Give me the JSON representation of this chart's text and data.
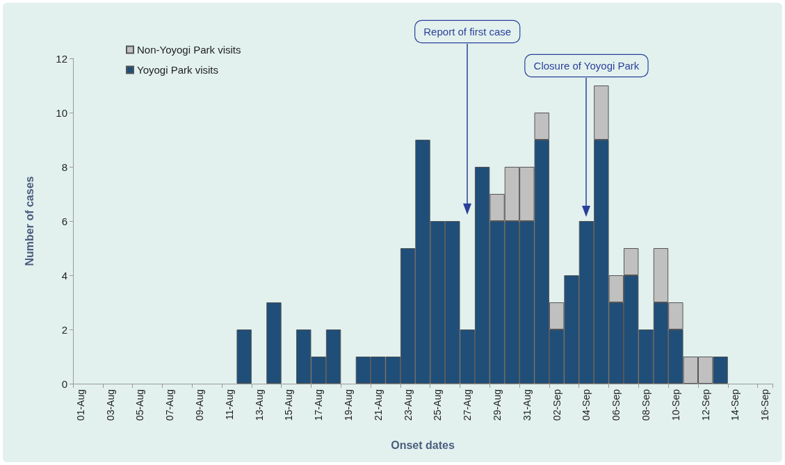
{
  "chart_data": {
    "type": "bar",
    "stacked": true,
    "xlabel": "Onset dates",
    "ylabel": "Number of cases",
    "categories": [
      "01-Aug",
      null,
      "03-Aug",
      null,
      "05-Aug",
      null,
      "07-Aug",
      null,
      "09-Aug",
      null,
      "11-Aug",
      null,
      "13-Aug",
      null,
      "15-Aug",
      null,
      "17-Aug",
      null,
      "19-Aug",
      null,
      "21-Aug",
      null,
      "23-Aug",
      null,
      "25-Aug",
      null,
      "27-Aug",
      null,
      "29-Aug",
      null,
      "31-Aug",
      null,
      "02-Sep",
      null,
      "04-Sep",
      null,
      "06-Sep",
      null,
      "08-Sep",
      null,
      "10-Sep",
      null,
      "12-Sep",
      null,
      "14-Sep",
      null,
      "16-Sep"
    ],
    "series": [
      {
        "name": "Yoyogi Park visits",
        "color": "#1f4e79",
        "values": [
          0,
          0,
          0,
          0,
          0,
          0,
          0,
          0,
          0,
          0,
          0,
          2,
          0,
          3,
          0,
          2,
          1,
          2,
          0,
          1,
          1,
          1,
          5,
          9,
          6,
          6,
          2,
          8,
          6,
          6,
          6,
          9,
          2,
          4,
          6,
          9,
          3,
          4,
          2,
          3,
          2,
          0,
          0,
          1,
          0,
          0,
          0
        ]
      },
      {
        "name": "Non-Yoyogi Park visits",
        "color": "#c0c0c0",
        "values": [
          0,
          0,
          0,
          0,
          0,
          0,
          0,
          0,
          0,
          0,
          0,
          0,
          0,
          0,
          0,
          0,
          0,
          0,
          0,
          0,
          0,
          0,
          0,
          0,
          0,
          0,
          0,
          0,
          1,
          2,
          2,
          1,
          1,
          0,
          0,
          2,
          1,
          1,
          0,
          2,
          1,
          1,
          1,
          0,
          0,
          0,
          0
        ]
      }
    ],
    "ylim": [
      0,
      12
    ],
    "yticks": [
      0,
      2,
      4,
      6,
      8,
      10,
      12
    ],
    "grid": false,
    "legend": "top left",
    "annotations": [
      {
        "text": "Report of first case",
        "x": "27-Aug"
      },
      {
        "text": "Closure of Yoyogi Park",
        "x": "04-Sep",
        "y": 6
      }
    ]
  }
}
